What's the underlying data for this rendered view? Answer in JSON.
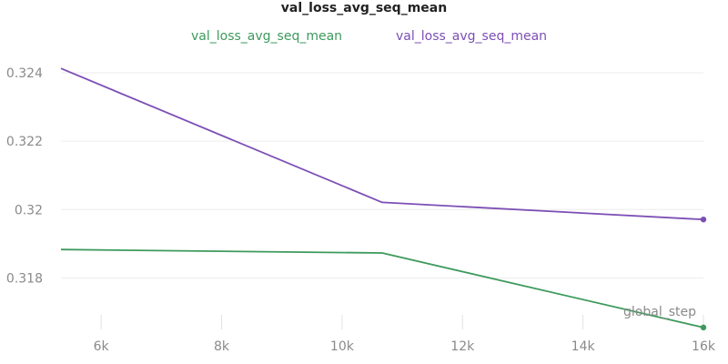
{
  "chart_data": {
    "type": "line",
    "title": "val_loss_avg_seq_mean",
    "xlabel": "global_step",
    "ylabel": "",
    "xlim": [
      5333,
      16000
    ],
    "ylim": [
      0.3166,
      0.3248
    ],
    "x_ticks": [
      6000,
      8000,
      10000,
      12000,
      14000,
      16000
    ],
    "x_tick_labels": [
      "6k",
      "8k",
      "10k",
      "12k",
      "14k",
      "16k"
    ],
    "y_ticks": [
      0.318,
      0.32,
      0.322,
      0.324
    ],
    "y_tick_labels": [
      "0.318",
      "0.32",
      "0.322",
      "0.324"
    ],
    "grid": true,
    "legend_position": "top-center",
    "series": [
      {
        "name": "val_loss_avg_seq_mean",
        "color": "#3d9a5c",
        "x": [
          5333,
          10667,
          16000
        ],
        "y": [
          0.31883,
          0.31873,
          0.31655
        ]
      },
      {
        "name": "val_loss_avg_seq_mean",
        "color": "#7c4fb5",
        "x": [
          5333,
          10667,
          16000
        ],
        "y": [
          0.32413,
          0.32021,
          0.31971
        ]
      }
    ]
  }
}
